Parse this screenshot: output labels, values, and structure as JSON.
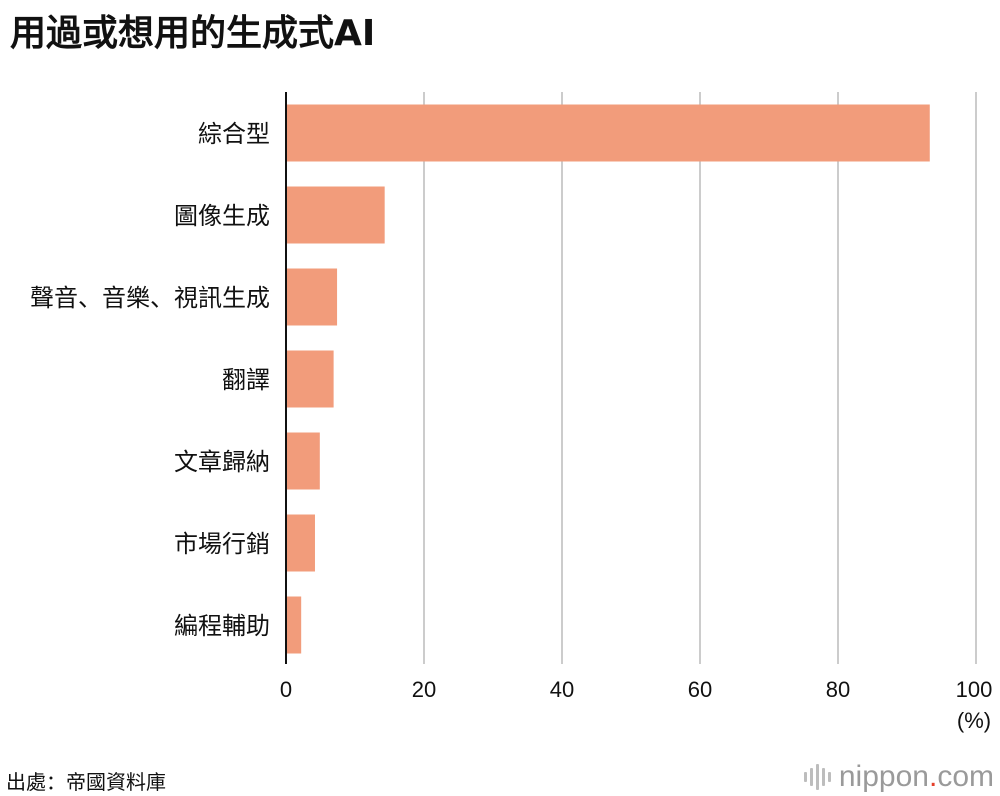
{
  "chart_data": {
    "type": "bar",
    "orientation": "horizontal",
    "title": "用過或想用的生成式AI",
    "categories": [
      "綜合型",
      "圖像生成",
      "聲音、音樂、視訊生成",
      "翻譯",
      "文章歸納",
      "市場行銷",
      "編程輔助"
    ],
    "values": [
      93.3,
      14.3,
      7.4,
      6.9,
      4.9,
      4.2,
      2.2
    ],
    "xlim": [
      0,
      100
    ],
    "xticks": [
      "0",
      "20",
      "40",
      "60",
      "80",
      "100"
    ],
    "xunit": "(%)",
    "grid": true,
    "bar_color": "#f29c7b",
    "grid_color": "#cccccc"
  },
  "footer": {
    "source": "出處：帝國資料庫",
    "brand_name": "nippon",
    "brand_dot": ".",
    "brand_tld": "com"
  },
  "colors": {
    "brand_accent": "#e5402b",
    "brand_text": "#9a9a9a"
  }
}
